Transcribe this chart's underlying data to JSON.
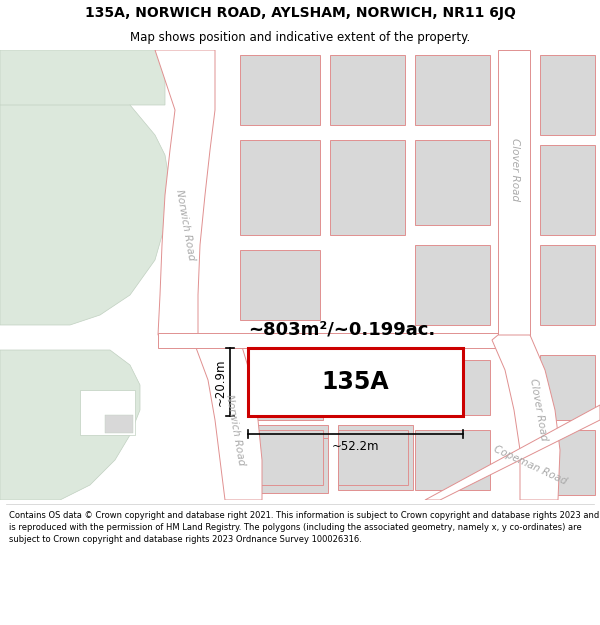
{
  "title_line1": "135A, NORWICH ROAD, AYLSHAM, NORWICH, NR11 6JQ",
  "title_line2": "Map shows position and indicative extent of the property.",
  "footer_text": "Contains OS data © Crown copyright and database right 2021. This information is subject to Crown copyright and database rights 2023 and is reproduced with the permission of HM Land Registry. The polygons (including the associated geometry, namely x, y co-ordinates) are subject to Crown copyright and database rights 2023 Ordnance Survey 100026316.",
  "bg_color": "#ffffff",
  "plot_fill": "#d8d8d8",
  "plot_stroke": "#e09090",
  "road_stroke": "#e09090",
  "highlight_fill": "#ffffff",
  "highlight_stroke": "#cc0000",
  "green_area": "#dce8dc",
  "green_stroke": "#c0d0c0",
  "label_135A": "135A",
  "area_label": "~803m²/~0.199ac.",
  "width_label": "~52.2m",
  "height_label": "~20.9m",
  "norwich_road_label": "Norwich Road",
  "clover_road_label1": "Clover Road",
  "clover_road_label2": "Clover Road",
  "copeman_road_label": "Copeman Road",
  "road_label_color": "#aaaaaa",
  "ann_color": "#000000",
  "title_fontsize": 10,
  "subtitle_fontsize": 8.5,
  "footer_fontsize": 6.0,
  "area_label_fontsize": 13,
  "label_135A_fontsize": 17,
  "dim_fontsize": 8.5,
  "road_label_fontsize": 7.5
}
